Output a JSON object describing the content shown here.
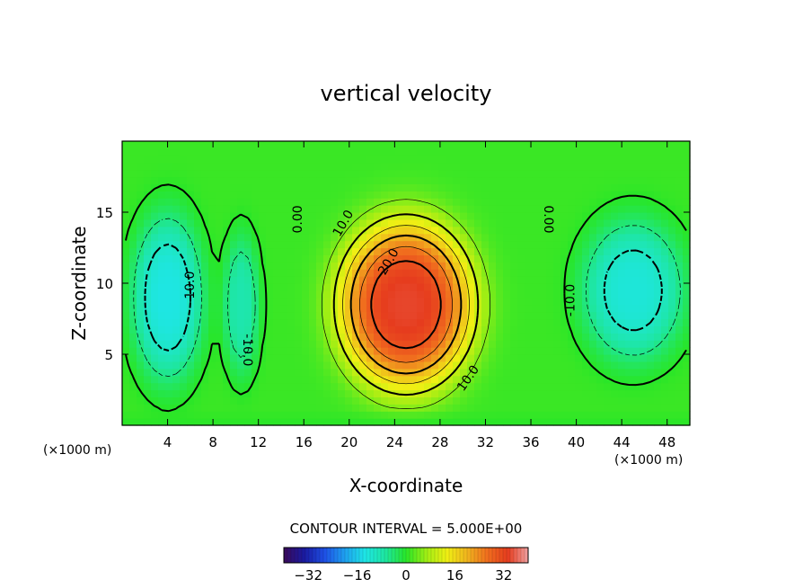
{
  "chart_data": {
    "type": "heatmap",
    "title": "vertical velocity",
    "xlabel": "X-coordinate",
    "ylabel": "Z-coordinate",
    "x_unit_left": "(×1000 m)",
    "x_unit_right": "(×1000 m)",
    "xlim": [
      0,
      50
    ],
    "ylim": [
      0,
      20
    ],
    "x_ticks": [
      4,
      8,
      12,
      16,
      20,
      24,
      28,
      32,
      36,
      40,
      44,
      48
    ],
    "y_ticks": [
      5,
      10,
      15
    ],
    "contour_interval_text": "CONTOUR INTERVAL = 5.000E+00",
    "contour_interval": 5.0,
    "colorbar": {
      "min": -40,
      "max": 40,
      "ticks": [
        -32,
        -16,
        0,
        16,
        32
      ]
    },
    "contour_labels": [
      {
        "text": "0.00",
        "x": 15.5,
        "y": 14.5,
        "rotate": -90
      },
      {
        "text": "10.0",
        "x": 19.5,
        "y": 14.2,
        "rotate": -60
      },
      {
        "text": "20.0",
        "x": 23.5,
        "y": 11.5,
        "rotate": -60
      },
      {
        "text": "10.0",
        "x": 30.5,
        "y": 3.3,
        "rotate": -55
      },
      {
        "text": "0.00",
        "x": 37.5,
        "y": 14.5,
        "rotate": 90
      },
      {
        "text": "-10.0",
        "x": 6.0,
        "y": 9.7,
        "rotate": -90
      },
      {
        "text": "-10.0",
        "x": 11.0,
        "y": 5.3,
        "rotate": 90
      },
      {
        "text": "-10.0",
        "x": 39.5,
        "y": 8.8,
        "rotate": -90
      }
    ],
    "cells": [
      {
        "x": 0,
        "z": 0,
        "w": 0
      }
    ],
    "features": [
      {
        "name": "updraft",
        "x_center": 25,
        "z_center": 8.5,
        "x_radius": 6.5,
        "z_radius": 6.5,
        "peak": 33
      },
      {
        "name": "left_downdraft",
        "x_center": 4,
        "z_center": 9,
        "x_radius": 3.5,
        "z_radius": 6.5,
        "peak": -14
      },
      {
        "name": "right_downdraft",
        "x_center": 45,
        "z_center": 9.5,
        "x_radius": 5,
        "z_radius": 5.5,
        "peak": -13
      },
      {
        "name": "mid_downdraft",
        "x_center": 10.5,
        "z_center": 8.5,
        "x_radius": 1.8,
        "z_radius": 5.5,
        "peak": -9
      }
    ]
  },
  "colors": {
    "palette": [
      "#3a0a5a",
      "#1a1aa0",
      "#1e50e6",
      "#1ea0f0",
      "#1ee6e6",
      "#1ee6a0",
      "#28e628",
      "#a0ee14",
      "#f0f014",
      "#f0b41e",
      "#f06e1e",
      "#e63c1e",
      "#f0a0a0"
    ]
  }
}
